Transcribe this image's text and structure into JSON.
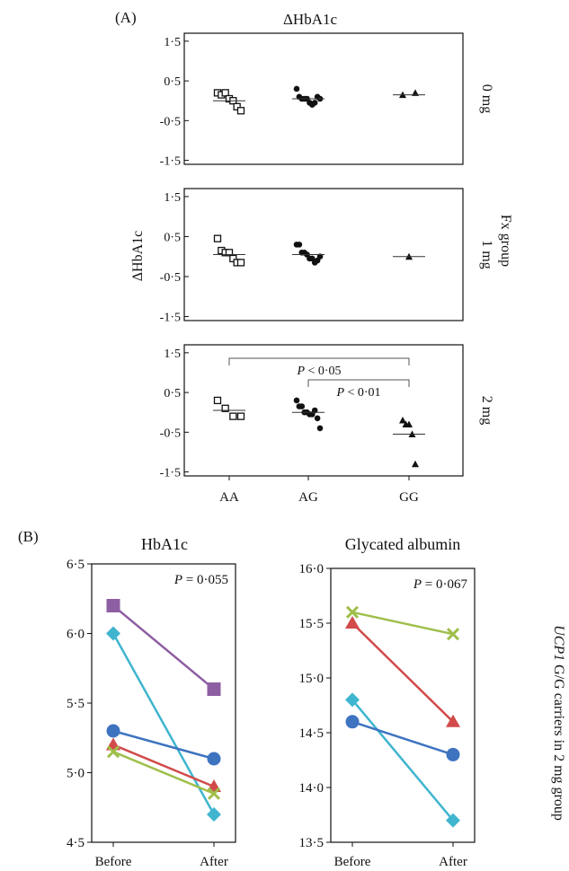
{
  "panel_a": {
    "label": "(A)",
    "title": "ΔHbA1c",
    "ylabel": "ΔHbA1c",
    "facet_title": "Fx group",
    "categories": [
      "AA",
      "AG",
      "GG"
    ],
    "yticks": [
      "1·5",
      "0·5",
      "-0·5",
      "-1·5"
    ],
    "ytick_values": [
      1.5,
      0.5,
      -0.5,
      -1.5
    ],
    "ylim": [
      -1.6,
      1.7
    ]
  },
  "panel_b": {
    "label": "(B)",
    "side_label_italic": "UCP1",
    "side_label_rest": " G/G carriers in 2 mg group",
    "p_prefix": "P"
  },
  "chart_data": [
    {
      "type": "scatter",
      "facet": "0 mg",
      "categories": [
        "AA",
        "AG",
        "GG"
      ],
      "marker_colors": {
        "AA": "#111111",
        "AG": "#111111",
        "GG": "#111111"
      },
      "points": {
        "AA": [
          0.2,
          0.15,
          0.2,
          0.05,
          0.0,
          -0.15,
          -0.25
        ],
        "AG": [
          0.3,
          0.1,
          0.05,
          0.05,
          0.05,
          -0.05,
          -0.1,
          -0.05,
          0.1,
          0.05
        ],
        "GG": [
          0.15,
          0.2
        ]
      },
      "means": {
        "AA": 0.0,
        "AG": 0.05,
        "GG": 0.15
      },
      "yticks": [
        1.5,
        0.5,
        -0.5,
        -1.5
      ],
      "ylim": [
        -1.6,
        1.7
      ],
      "annotations": []
    },
    {
      "type": "scatter",
      "facet": "1 mg",
      "categories": [
        "AA",
        "AG",
        "GG"
      ],
      "points": {
        "AA": [
          0.45,
          0.15,
          0.1,
          0.1,
          -0.05,
          -0.15,
          -0.15
        ],
        "AG": [
          0.3,
          0.3,
          0.1,
          0.1,
          0.05,
          -0.05,
          -0.05,
          -0.15,
          -0.1,
          0.0
        ],
        "GG": [
          0.0
        ]
      },
      "means": {
        "AA": 0.05,
        "AG": 0.05,
        "GG": 0.0
      },
      "yticks": [
        1.5,
        0.5,
        -0.5,
        -1.5
      ],
      "ylim": [
        -1.6,
        1.7
      ],
      "annotations": []
    },
    {
      "type": "scatter",
      "facet": "2 mg",
      "categories": [
        "AA",
        "AG",
        "GG"
      ],
      "points": {
        "AA": [
          0.3,
          0.1,
          -0.1,
          -0.1
        ],
        "AG": [
          0.3,
          0.15,
          0.15,
          0.0,
          0.0,
          -0.05,
          -0.05,
          0.05,
          -0.15,
          -0.4
        ],
        "GG": [
          -0.2,
          -0.3,
          -0.3,
          -0.55,
          -1.3
        ]
      },
      "means": {
        "AA": 0.05,
        "AG": 0.0,
        "GG": -0.55
      },
      "yticks": [
        1.5,
        0.5,
        -0.5,
        -1.5
      ],
      "ylim": [
        -1.6,
        1.7
      ],
      "annotations": [
        {
          "text": "P < 0·05",
          "from": "AA",
          "to": "GG"
        },
        {
          "text": "P < 0·01",
          "from": "AG",
          "to": "GG"
        }
      ]
    },
    {
      "type": "line",
      "title": "HbA1c",
      "x": [
        "Before",
        "After"
      ],
      "p_value": "= 0·055",
      "yticks": [
        "6·5",
        "6·0",
        "5·5",
        "5·0",
        "4·5"
      ],
      "ytick_values": [
        6.5,
        6.0,
        5.5,
        5.0,
        4.5
      ],
      "ylim": [
        4.5,
        6.5
      ],
      "series": [
        {
          "values": [
            6.2,
            5.6
          ],
          "color": "#8e5ea2",
          "marker": "square"
        },
        {
          "values": [
            6.0,
            4.7
          ],
          "color": "#3fb5cf",
          "marker": "diamond"
        },
        {
          "values": [
            5.3,
            5.1
          ],
          "color": "#3e73c0",
          "marker": "circle"
        },
        {
          "values": [
            5.2,
            4.9
          ],
          "color": "#d24a4a",
          "marker": "triangle"
        },
        {
          "values": [
            5.15,
            4.85
          ],
          "color": "#9fbf4a",
          "marker": "x"
        }
      ]
    },
    {
      "type": "line",
      "title": "Glycated albumin",
      "x": [
        "Before",
        "After"
      ],
      "p_value": "= 0·067",
      "yticks": [
        "16·0",
        "15·5",
        "15·0",
        "14·5",
        "14·0",
        "13·5"
      ],
      "ytick_values": [
        16.0,
        15.5,
        15.0,
        14.5,
        14.0,
        13.5
      ],
      "ylim": [
        13.5,
        16.0
      ],
      "series": [
        {
          "values": [
            15.6,
            15.4
          ],
          "color": "#9fbf4a",
          "marker": "x"
        },
        {
          "values": [
            15.5,
            14.6
          ],
          "color": "#d24a4a",
          "marker": "triangle"
        },
        {
          "values": [
            14.8,
            13.7
          ],
          "color": "#3fb5cf",
          "marker": "diamond"
        },
        {
          "values": [
            14.6,
            14.3
          ],
          "color": "#3e73c0",
          "marker": "circle"
        }
      ]
    }
  ]
}
